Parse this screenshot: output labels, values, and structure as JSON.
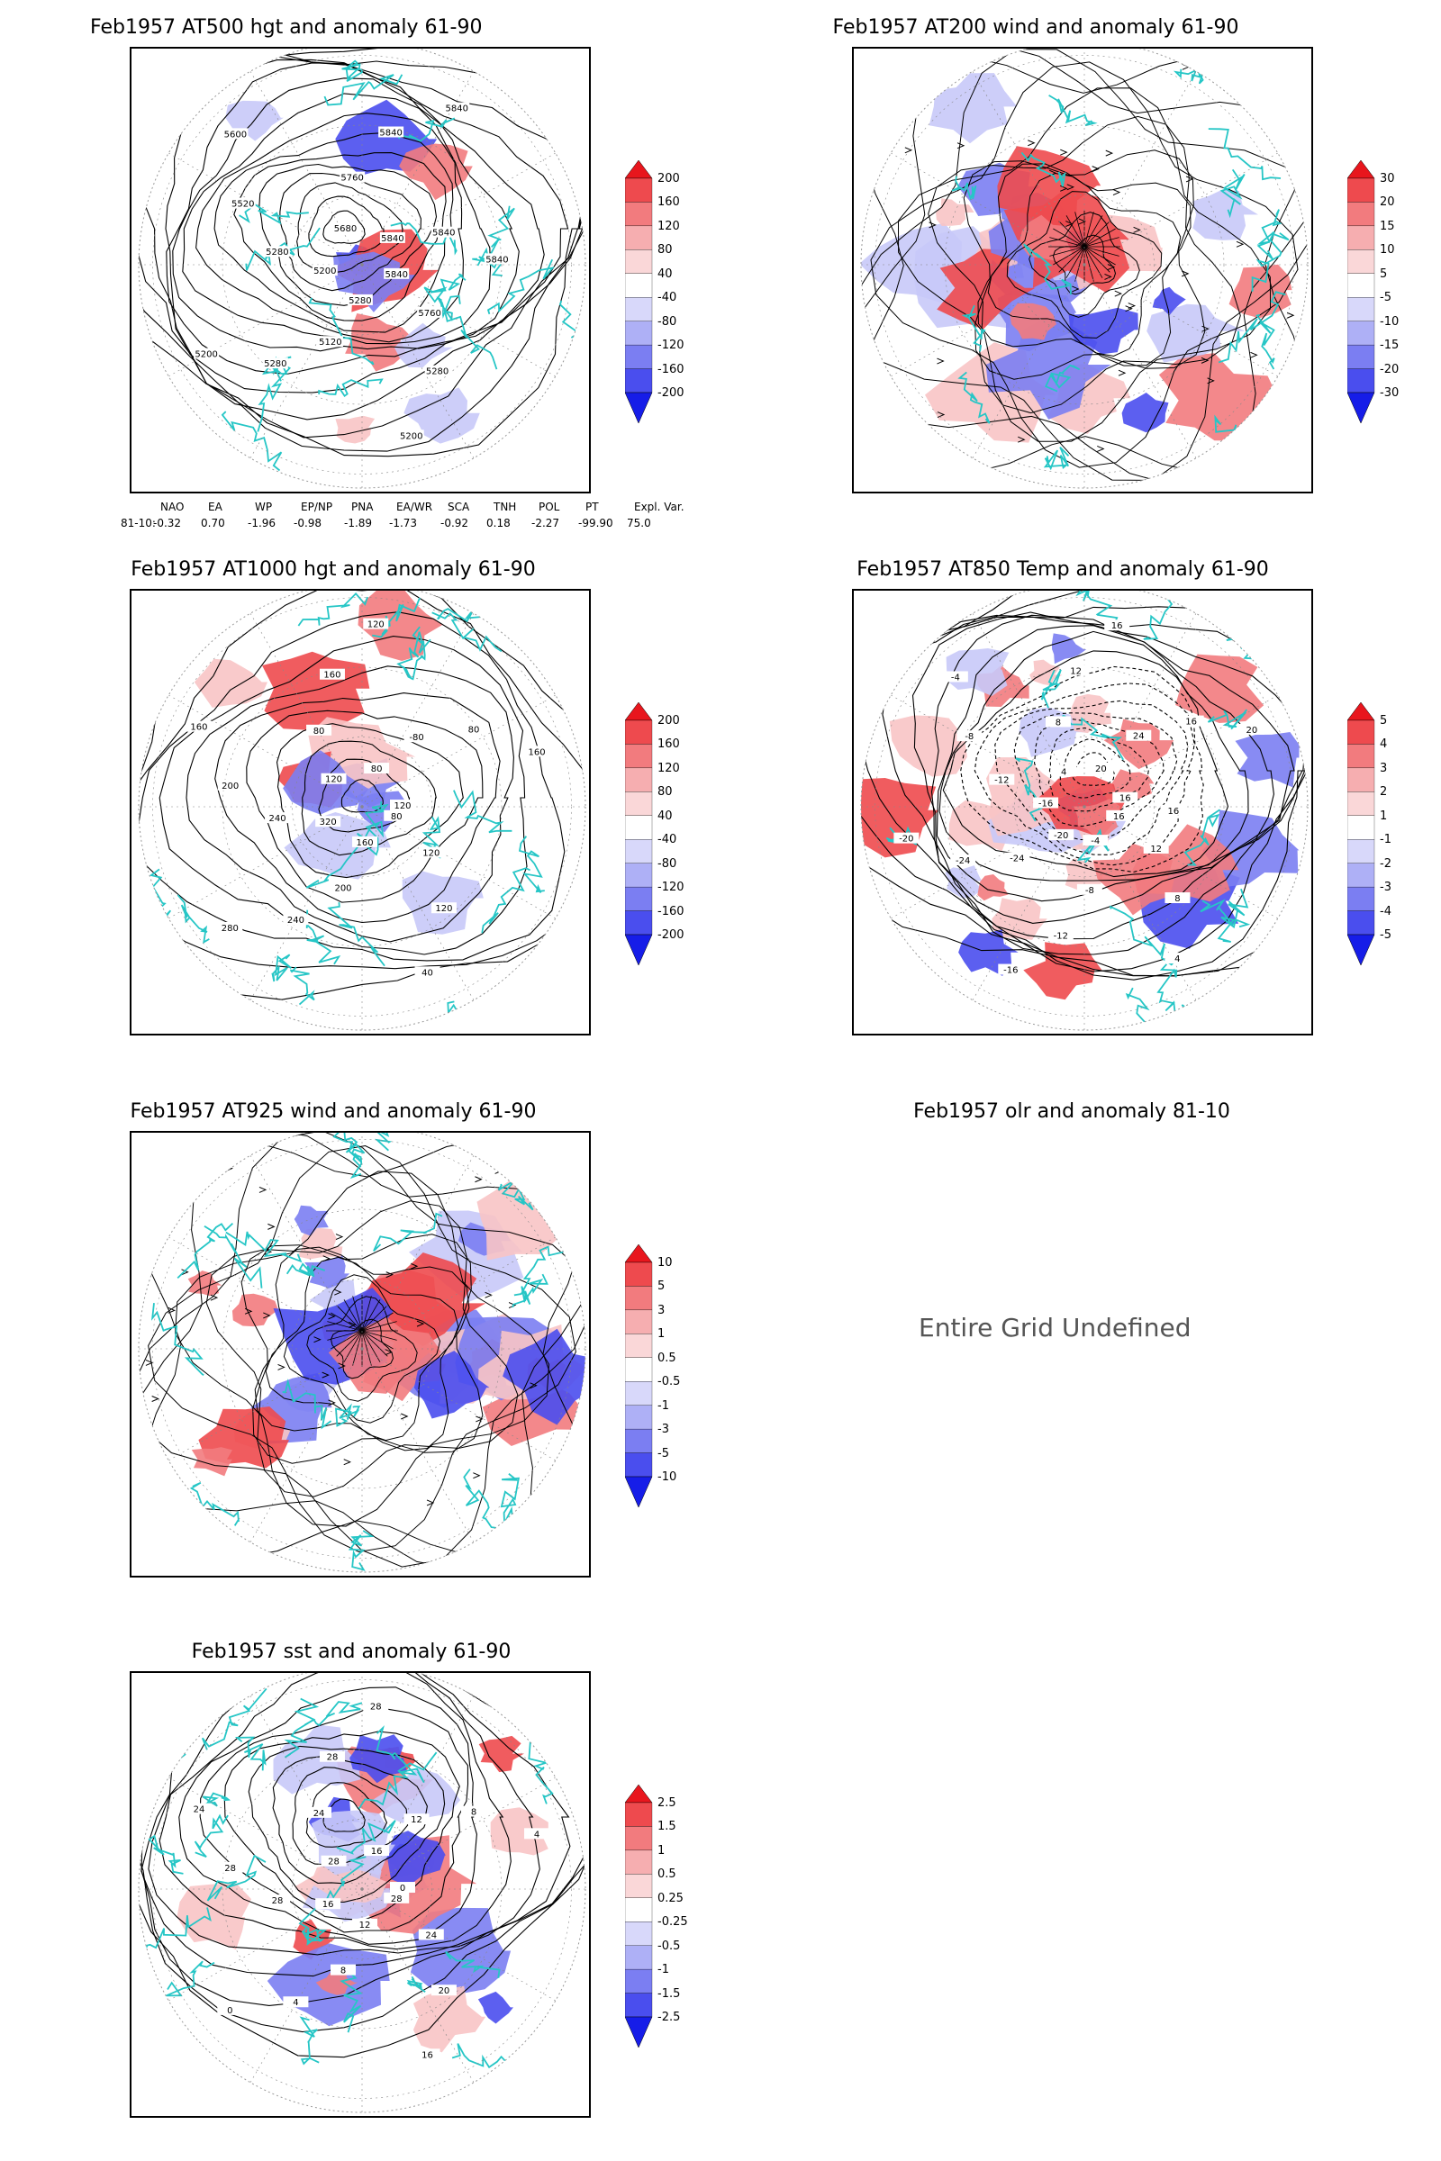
{
  "panels": [
    {
      "id": "p500",
      "title": "Feb1957 AT500 hgt and anomaly 61-90",
      "kind": "hgt",
      "colorbar": [
        "200",
        "160",
        "120",
        "80",
        "40",
        "-40",
        "-80",
        "-120",
        "-160",
        "-200"
      ],
      "contours": [
        "5840",
        "5760",
        "5280",
        "5200",
        "5280",
        "5120",
        "5280",
        "5200",
        "5200",
        "5280",
        "5520",
        "5600",
        "5680",
        "5760",
        "5840",
        "5840",
        "5840",
        "5840",
        "5840"
      ]
    },
    {
      "id": "p200",
      "title": "Feb1957 AT200 wind and anomaly 61-90",
      "kind": "wind",
      "colorbar": [
        "30",
        "20",
        "15",
        "10",
        "5",
        "-5",
        "-10",
        "-15",
        "-20",
        "-30"
      ]
    },
    {
      "id": "p1000",
      "title": "Feb1957 AT1000 hgt and anomaly 61-90",
      "kind": "hgt",
      "colorbar": [
        "200",
        "160",
        "120",
        "80",
        "40",
        "-40",
        "-80",
        "-120",
        "-160",
        "-200"
      ],
      "contours": [
        "80",
        "120",
        "120",
        "40",
        "160",
        "200",
        "240",
        "280",
        "320",
        "240",
        "200",
        "160",
        "120",
        "80",
        "160",
        "120",
        "80",
        "-80",
        "80",
        "160",
        "120"
      ]
    },
    {
      "id": "p850",
      "title": "Feb1957 AT850 Temp and anomaly 61-90",
      "kind": "temp",
      "colorbar": [
        "5",
        "4",
        "3",
        "2",
        "1",
        "-1",
        "-2",
        "-3",
        "-4",
        "-5"
      ],
      "contours": [
        "16",
        "12",
        "8",
        "4",
        "-4",
        "-8",
        "-12",
        "-16",
        "-20",
        "-24",
        "-24",
        "-20",
        "-16",
        "-12",
        "-8",
        "-4",
        "4",
        "8",
        "12",
        "16",
        "20",
        "24",
        "16",
        "20",
        "16",
        "16"
      ]
    },
    {
      "id": "p925",
      "title": "Feb1957 AT925 wind and anomaly 61-90",
      "kind": "wind",
      "colorbar": [
        "10",
        "5",
        "3",
        "1",
        "0.5",
        "-0.5",
        "-1",
        "-3",
        "-5",
        "-10"
      ]
    },
    {
      "id": "polr",
      "title": "Feb1957 olr and anomaly 81-10",
      "kind": "undefined",
      "message": "Entire Grid Undefined"
    },
    {
      "id": "psst",
      "title": "Feb1957 sst and anomaly 61-90",
      "kind": "sst",
      "colorbar": [
        "2.5",
        "1.5",
        "1",
        "0.5",
        "0.25",
        "-0.25",
        "-0.5",
        "-1",
        "-1.5",
        "-2.5"
      ],
      "contours": [
        "28",
        "24",
        "20",
        "16",
        "12",
        "8",
        "4",
        "0",
        "16",
        "28",
        "28",
        "24",
        "28",
        "24",
        "28",
        "28",
        "16",
        "12",
        "8",
        "4",
        "0"
      ]
    }
  ],
  "teleconnections": {
    "headers": [
      "NAO",
      "EA",
      "WP",
      "EP/NP",
      "PNA",
      "EA/WR",
      "SCA",
      "TNH",
      "POL",
      "PT",
      "Expl. Var."
    ],
    "row_label": "81-10:",
    "values": [
      "-0.32",
      "0.70",
      "-1.96",
      "-0.98",
      "-1.89",
      "-1.73",
      "-0.92",
      "0.18",
      "-2.27",
      "-99.90",
      "75.0"
    ]
  },
  "colors": {
    "positive": "#e8242a",
    "negative": "#2a35e8",
    "coast": "#26c6c6",
    "contour": "#000000"
  }
}
